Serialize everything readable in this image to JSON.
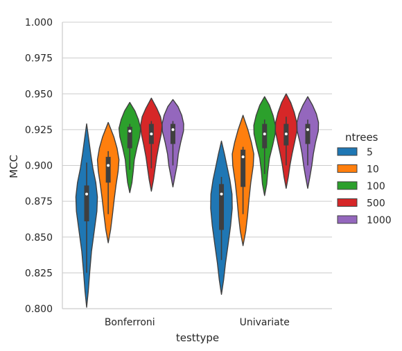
{
  "chart_data": {
    "type": "violin",
    "xlabel": "testtype",
    "ylabel": "MCC",
    "categories": [
      "Bonferroni",
      "Univariate"
    ],
    "ylim": [
      0.8,
      1.0
    ],
    "yticks": [
      "0.800",
      "0.825",
      "0.850",
      "0.875",
      "0.900",
      "0.925",
      "0.950",
      "0.975",
      "1.000"
    ],
    "grid": "horizontal",
    "legend": {
      "title": "ntrees",
      "placement": "right"
    },
    "series": [
      {
        "name": "5",
        "color": "#1f77b4",
        "groups": [
          {
            "min": 0.801,
            "max": 0.929,
            "q1": 0.861,
            "median": 0.88,
            "q3": 0.886,
            "wlo": 0.825,
            "whi": 0.902,
            "profile": [
              [
                0.801,
                0
              ],
              [
                0.812,
                0.15
              ],
              [
                0.825,
                0.28
              ],
              [
                0.84,
                0.45
              ],
              [
                0.855,
                0.72
              ],
              [
                0.868,
                0.95
              ],
              [
                0.878,
                1.0
              ],
              [
                0.888,
                0.85
              ],
              [
                0.898,
                0.58
              ],
              [
                0.908,
                0.38
              ],
              [
                0.918,
                0.2
              ],
              [
                0.929,
                0
              ]
            ]
          },
          {
            "min": 0.81,
            "max": 0.917,
            "q1": 0.855,
            "median": 0.88,
            "q3": 0.887,
            "wlo": 0.834,
            "whi": 0.892,
            "profile": [
              [
                0.81,
                0
              ],
              [
                0.82,
                0.2
              ],
              [
                0.832,
                0.38
              ],
              [
                0.845,
                0.62
              ],
              [
                0.858,
                0.85
              ],
              [
                0.87,
                1.0
              ],
              [
                0.88,
                0.98
              ],
              [
                0.89,
                0.78
              ],
              [
                0.9,
                0.5
              ],
              [
                0.908,
                0.28
              ],
              [
                0.917,
                0
              ]
            ]
          }
        ]
      },
      {
        "name": "10",
        "color": "#ff7f0e",
        "groups": [
          {
            "min": 0.846,
            "max": 0.93,
            "q1": 0.888,
            "median": 0.9,
            "q3": 0.906,
            "wlo": 0.866,
            "whi": 0.91,
            "profile": [
              [
                0.846,
                0
              ],
              [
                0.855,
                0.22
              ],
              [
                0.866,
                0.4
              ],
              [
                0.876,
                0.55
              ],
              [
                0.886,
                0.72
              ],
              [
                0.896,
                0.92
              ],
              [
                0.904,
                1.0
              ],
              [
                0.912,
                0.82
              ],
              [
                0.92,
                0.52
              ],
              [
                0.93,
                0
              ]
            ]
          },
          {
            "min": 0.844,
            "max": 0.935,
            "q1": 0.885,
            "median": 0.906,
            "q3": 0.911,
            "wlo": 0.866,
            "whi": 0.913,
            "profile": [
              [
                0.844,
                0
              ],
              [
                0.854,
                0.25
              ],
              [
                0.865,
                0.42
              ],
              [
                0.876,
                0.55
              ],
              [
                0.888,
                0.72
              ],
              [
                0.9,
                0.95
              ],
              [
                0.908,
                1.0
              ],
              [
                0.916,
                0.78
              ],
              [
                0.925,
                0.45
              ],
              [
                0.935,
                0
              ]
            ]
          }
        ]
      },
      {
        "name": "100",
        "color": "#2ca02c",
        "groups": [
          {
            "min": 0.881,
            "max": 0.944,
            "q1": 0.912,
            "median": 0.924,
            "q3": 0.927,
            "wlo": 0.897,
            "whi": 0.929,
            "profile": [
              [
                0.881,
                0
              ],
              [
                0.888,
                0.2
              ],
              [
                0.896,
                0.32
              ],
              [
                0.904,
                0.42
              ],
              [
                0.912,
                0.65
              ],
              [
                0.92,
                0.92
              ],
              [
                0.926,
                1.0
              ],
              [
                0.932,
                0.8
              ],
              [
                0.938,
                0.48
              ],
              [
                0.944,
                0
              ]
            ]
          },
          {
            "min": 0.879,
            "max": 0.948,
            "q1": 0.912,
            "median": 0.922,
            "q3": 0.929,
            "wlo": 0.894,
            "whi": 0.932,
            "profile": [
              [
                0.879,
                0
              ],
              [
                0.887,
                0.2
              ],
              [
                0.896,
                0.3
              ],
              [
                0.905,
                0.45
              ],
              [
                0.914,
                0.75
              ],
              [
                0.922,
                0.98
              ],
              [
                0.928,
                1.0
              ],
              [
                0.935,
                0.78
              ],
              [
                0.942,
                0.45
              ],
              [
                0.948,
                0
              ]
            ]
          }
        ]
      },
      {
        "name": "500",
        "color": "#d62728",
        "groups": [
          {
            "min": 0.882,
            "max": 0.947,
            "q1": 0.915,
            "median": 0.922,
            "q3": 0.929,
            "wlo": 0.898,
            "whi": 0.931,
            "profile": [
              [
                0.882,
                0
              ],
              [
                0.89,
                0.2
              ],
              [
                0.898,
                0.35
              ],
              [
                0.906,
                0.5
              ],
              [
                0.914,
                0.7
              ],
              [
                0.922,
                0.92
              ],
              [
                0.928,
                1.0
              ],
              [
                0.934,
                0.85
              ],
              [
                0.94,
                0.5
              ],
              [
                0.947,
                0
              ]
            ]
          },
          {
            "min": 0.884,
            "max": 0.95,
            "q1": 0.914,
            "median": 0.922,
            "q3": 0.929,
            "wlo": 0.9,
            "whi": 0.934,
            "profile": [
              [
                0.884,
                0
              ],
              [
                0.892,
                0.2
              ],
              [
                0.9,
                0.35
              ],
              [
                0.908,
                0.55
              ],
              [
                0.916,
                0.78
              ],
              [
                0.924,
                1.0
              ],
              [
                0.93,
                0.98
              ],
              [
                0.937,
                0.75
              ],
              [
                0.944,
                0.42
              ],
              [
                0.95,
                0
              ]
            ]
          }
        ]
      },
      {
        "name": "1000",
        "color": "#9467bd",
        "groups": [
          {
            "min": 0.885,
            "max": 0.946,
            "q1": 0.915,
            "median": 0.925,
            "q3": 0.929,
            "wlo": 0.9,
            "whi": 0.931,
            "profile": [
              [
                0.885,
                0
              ],
              [
                0.893,
                0.2
              ],
              [
                0.9,
                0.38
              ],
              [
                0.908,
                0.5
              ],
              [
                0.916,
                0.72
              ],
              [
                0.924,
                0.98
              ],
              [
                0.929,
                1.0
              ],
              [
                0.935,
                0.82
              ],
              [
                0.941,
                0.48
              ],
              [
                0.946,
                0
              ]
            ]
          },
          {
            "min": 0.884,
            "max": 0.948,
            "q1": 0.915,
            "median": 0.925,
            "q3": 0.929,
            "wlo": 0.9,
            "whi": 0.932,
            "profile": [
              [
                0.884,
                0
              ],
              [
                0.892,
                0.2
              ],
              [
                0.9,
                0.38
              ],
              [
                0.908,
                0.52
              ],
              [
                0.916,
                0.72
              ],
              [
                0.924,
                0.98
              ],
              [
                0.93,
                1.0
              ],
              [
                0.936,
                0.8
              ],
              [
                0.942,
                0.45
              ],
              [
                0.948,
                0
              ]
            ]
          }
        ]
      }
    ]
  }
}
